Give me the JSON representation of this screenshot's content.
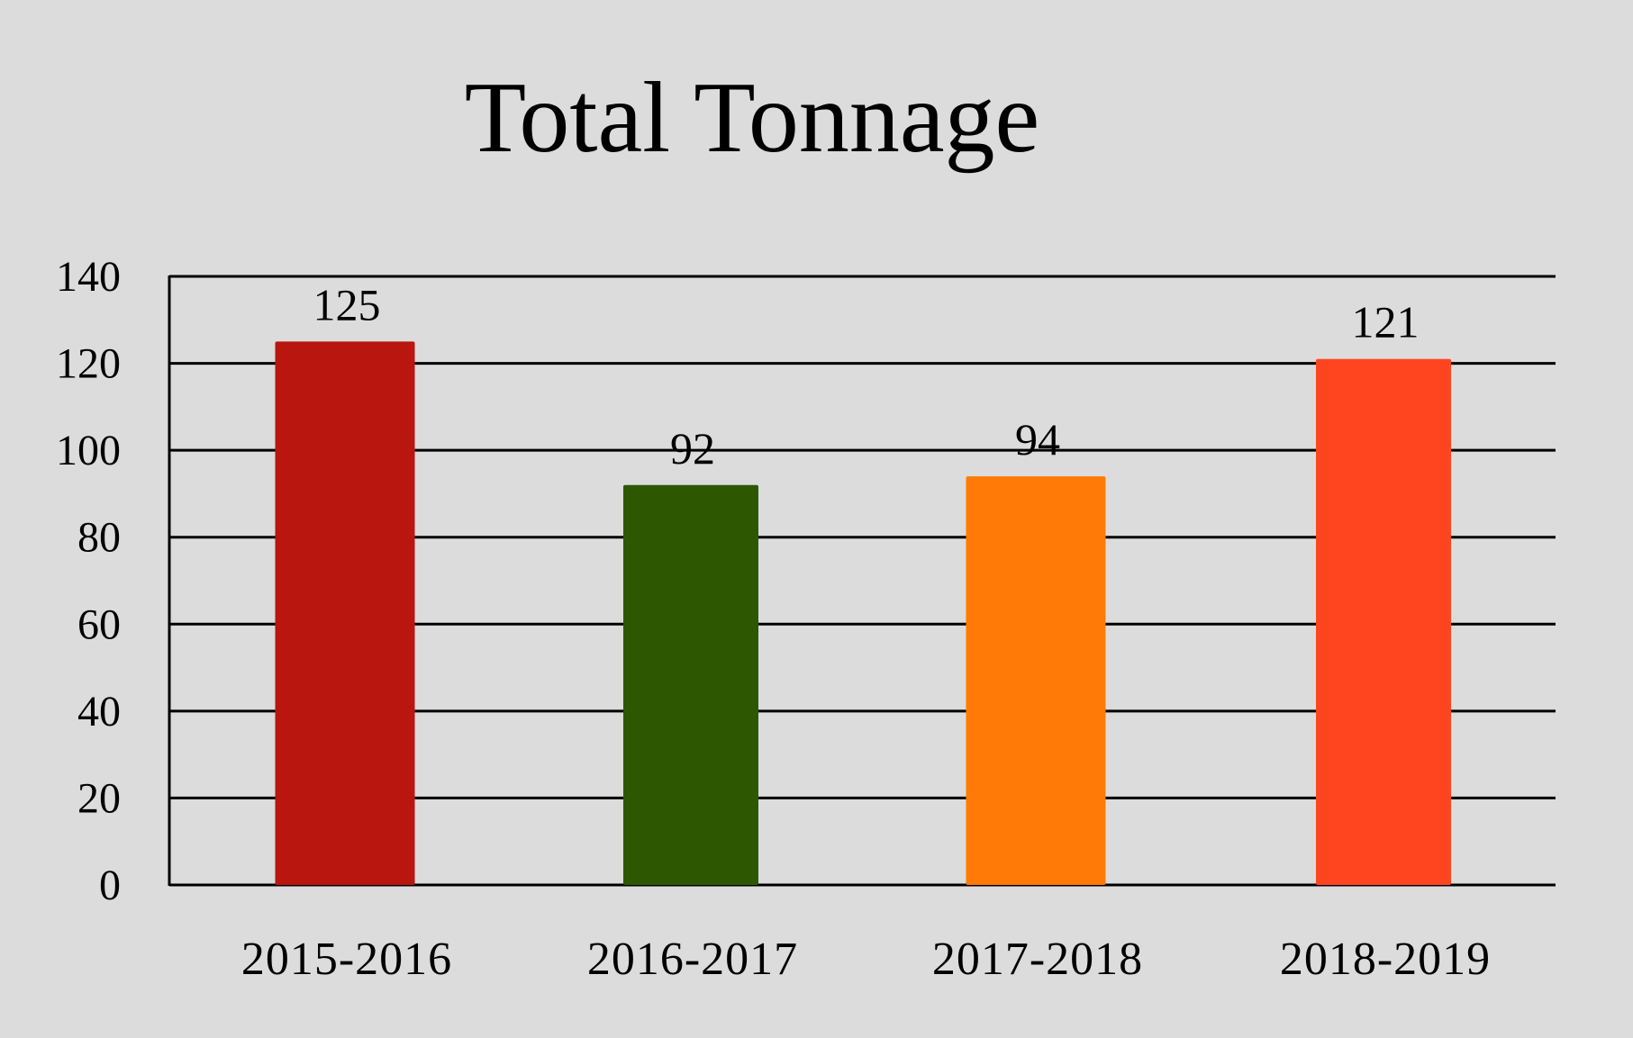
{
  "chart_data": {
    "type": "bar",
    "title": "Total Tonnage",
    "xlabel": "",
    "ylabel": "",
    "categories": [
      "2015-2016",
      "2016-2017",
      "2017-2018",
      "2018-2019"
    ],
    "values": [
      125,
      92,
      94,
      121
    ],
    "data_labels": [
      "125",
      "92",
      "94",
      "121"
    ],
    "colors": [
      "#b8160f",
      "#2d5700",
      "#ff7a06",
      "#ff451f"
    ],
    "ylim": [
      0,
      140
    ],
    "yticks": [
      0,
      20,
      40,
      60,
      80,
      100,
      120,
      140
    ],
    "ytick_labels": [
      "0",
      "20",
      "40",
      "60",
      "80",
      "100",
      "120",
      "140"
    ],
    "grid": true,
    "legend": "none",
    "background": "#dcdcdc"
  }
}
